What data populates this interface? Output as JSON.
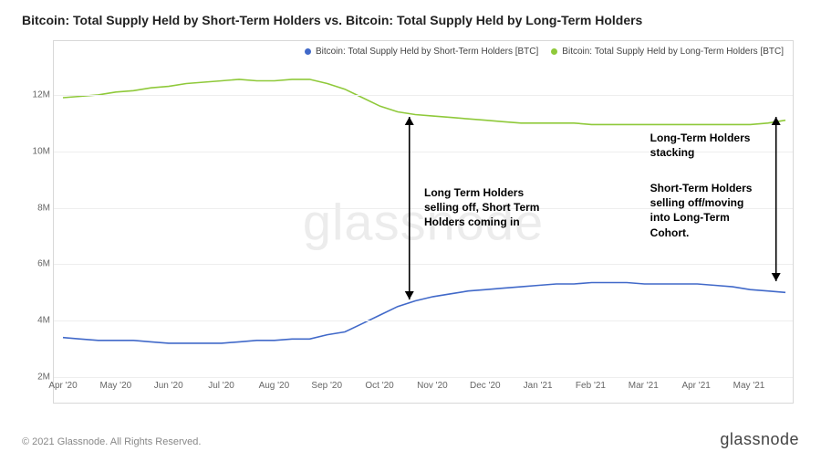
{
  "title": "Bitcoin: Total Supply Held by Short-Term Holders vs. Bitcoin: Total Supply Held by Long-Term Holders",
  "watermark": "glassnode",
  "copyright": "© 2021 Glassnode. All Rights Reserved.",
  "brand": "glassnode",
  "legend": {
    "series_a": "Bitcoin: Total Supply Held by Short-Term Holders [BTC]",
    "series_b": "Bitcoin: Total Supply Held by Long-Term Holders [BTC]"
  },
  "colors": {
    "short_term": "#4169c9",
    "long_term": "#8fc93a",
    "grid": "#eeeeee",
    "axis_border": "#d8d8d8",
    "text": "#222222",
    "muted": "#888888",
    "background": "#ffffff",
    "watermark": "#ececec",
    "annotation": "#000000"
  },
  "chart": {
    "type": "line",
    "ylim": [
      2,
      13
    ],
    "yticks": [
      2,
      4,
      6,
      8,
      10,
      12
    ],
    "ytick_labels": [
      "2M",
      "4M",
      "6M",
      "8M",
      "10M",
      "12M"
    ],
    "xlabels": [
      "Apr '20",
      "May '20",
      "Jun '20",
      "Jul '20",
      "Aug '20",
      "Sep '20",
      "Oct '20",
      "Nov '20",
      "Dec '20",
      "Jan '21",
      "Feb '21",
      "Mar '21",
      "Apr '21",
      "May '21"
    ],
    "line_width": 1.6,
    "long_term_values": [
      11.9,
      11.95,
      12.0,
      12.1,
      12.15,
      12.25,
      12.3,
      12.4,
      12.45,
      12.5,
      12.55,
      12.5,
      12.5,
      12.55,
      12.55,
      12.4,
      12.2,
      11.9,
      11.6,
      11.4,
      11.3,
      11.25,
      11.2,
      11.15,
      11.1,
      11.05,
      11.0,
      11.0,
      11.0,
      11.0,
      10.95,
      10.95,
      10.95,
      10.95,
      10.95,
      10.95,
      10.95,
      10.95,
      10.95,
      10.95,
      11.0,
      11.1
    ],
    "short_term_values": [
      3.4,
      3.35,
      3.3,
      3.3,
      3.3,
      3.25,
      3.2,
      3.2,
      3.2,
      3.2,
      3.25,
      3.3,
      3.3,
      3.35,
      3.35,
      3.5,
      3.6,
      3.9,
      4.2,
      4.5,
      4.7,
      4.85,
      4.95,
      5.05,
      5.1,
      5.15,
      5.2,
      5.25,
      5.3,
      5.3,
      5.35,
      5.35,
      5.35,
      5.3,
      5.3,
      5.3,
      5.3,
      5.25,
      5.2,
      5.1,
      5.05,
      5.0
    ],
    "annotation_1": "Long Term Holders\nselling off, Short Term\nHolders coming in",
    "annotation_2_top": "Long-Term Holders\nstacking",
    "annotation_2_bottom": "Short-Term Holders\nselling off/moving\ninto Long-Term\nCohort."
  }
}
